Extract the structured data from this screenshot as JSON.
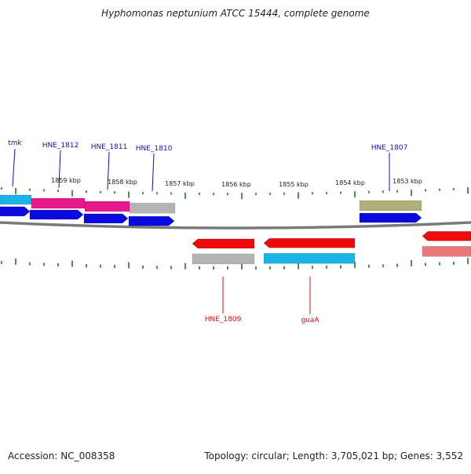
{
  "title": "Hyphomonas neptunium ATCC 15444, complete genome",
  "footer": {
    "accession": "Accession: NC_008358",
    "summary": "Topology: circular; Length: 3,705,021 bp; Genes: 3,552"
  },
  "colors": {
    "cds_blue": "#0a0adf",
    "cds_red": "#ee0a0a",
    "pink": "#e6188c",
    "cyan": "#19b3e6",
    "gray": "#b4b4b4",
    "olive": "#b1ae7a",
    "salmon": "#e8787a",
    "tick_green": "#1a7a1a",
    "backbone": "#7a7a7a",
    "label_blue": "#1111aa",
    "label_red": "#cc1111"
  },
  "ruler_labels": [
    "1859 kbp",
    "1858 kbp",
    "1857 kbp",
    "1856 kbp",
    "1855 kbp",
    "1854 kbp",
    "1853 kbp"
  ],
  "gene_labels_top": [
    "tmk",
    "HNE_1812",
    "HNE_1811",
    "HNE_1810",
    "HNE_1807"
  ],
  "gene_labels_bottom": [
    "HNE_1809",
    "guaA"
  ]
}
